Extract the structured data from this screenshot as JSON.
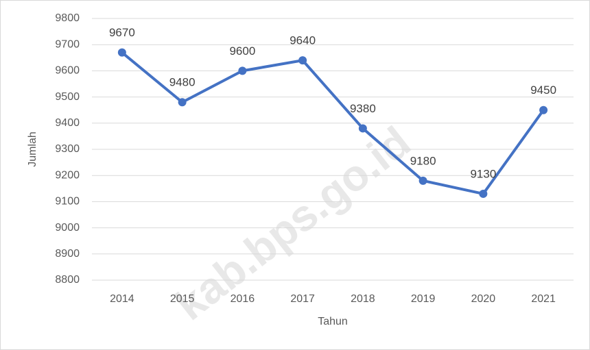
{
  "chart_data": {
    "type": "line",
    "categories": [
      "2014",
      "2015",
      "2016",
      "2017",
      "2018",
      "2019",
      "2020",
      "2021"
    ],
    "series": [
      {
        "name": "Jumlah",
        "color": "#4472c4",
        "values": [
          9670,
          9480,
          9600,
          9640,
          9380,
          9180,
          9130,
          9450
        ]
      }
    ],
    "ylim": [
      8800,
      9800
    ],
    "yticks": [
      8800,
      8900,
      9000,
      9100,
      9200,
      9300,
      9400,
      9500,
      9600,
      9700,
      9800
    ],
    "xlabel": "Tahun",
    "ylabel": "Jumlah",
    "grid": true,
    "data_labels": true
  },
  "watermark": "kab.bps.go.id"
}
